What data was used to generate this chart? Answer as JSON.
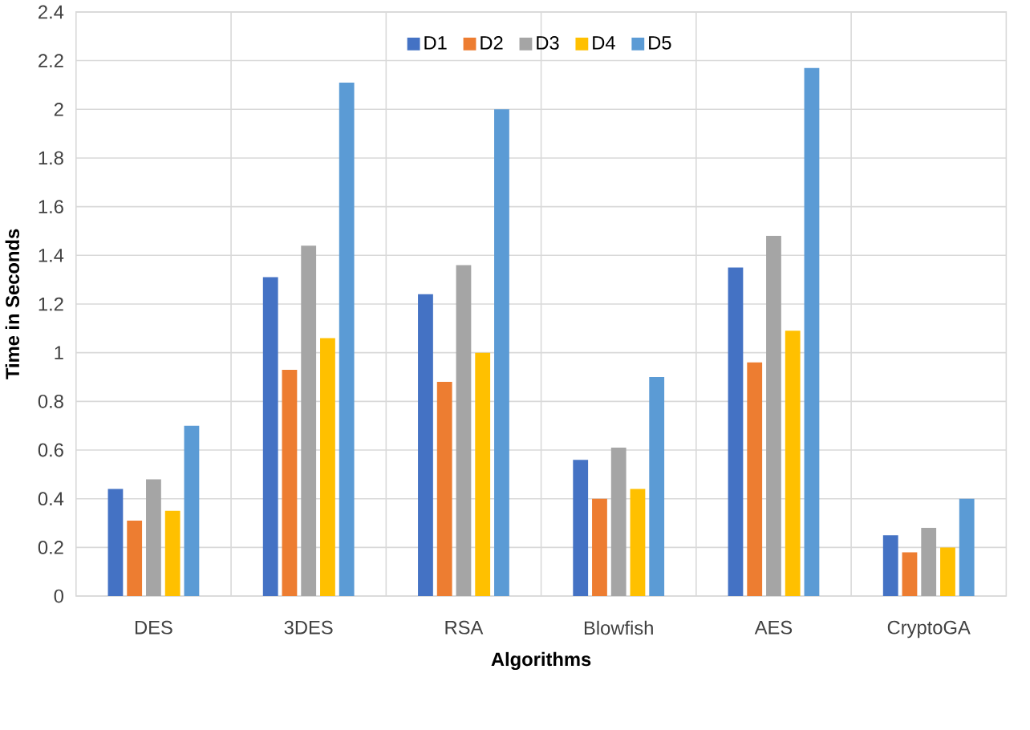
{
  "chart_data": {
    "type": "bar",
    "xlabel": "Algorithms",
    "ylabel": "Time in Seconds",
    "categories": [
      "DES",
      "3DES",
      "RSA",
      "Blowfish",
      "AES",
      "CryptoGA"
    ],
    "series": [
      {
        "name": "D1",
        "color": "#4472c4",
        "values": [
          0.44,
          1.31,
          1.24,
          0.56,
          1.35,
          0.25
        ]
      },
      {
        "name": "D2",
        "color": "#ed7d31",
        "values": [
          0.31,
          0.93,
          0.88,
          0.4,
          0.96,
          0.18
        ]
      },
      {
        "name": "D3",
        "color": "#a5a5a5",
        "values": [
          0.48,
          1.44,
          1.36,
          0.61,
          1.48,
          0.28
        ]
      },
      {
        "name": "D4",
        "color": "#ffc000",
        "values": [
          0.35,
          1.06,
          1.0,
          0.44,
          1.09,
          0.2
        ]
      },
      {
        "name": "D5",
        "color": "#5b9bd5",
        "values": [
          0.7,
          2.11,
          2.0,
          0.9,
          2.17,
          0.4
        ]
      }
    ],
    "ylim": [
      0,
      2.4
    ],
    "yticks": [
      0,
      0.2,
      0.4,
      0.6,
      0.8,
      1,
      1.2,
      1.4,
      1.6,
      1.8,
      2,
      2.2,
      2.4
    ],
    "grid": true,
    "legend": "top"
  }
}
